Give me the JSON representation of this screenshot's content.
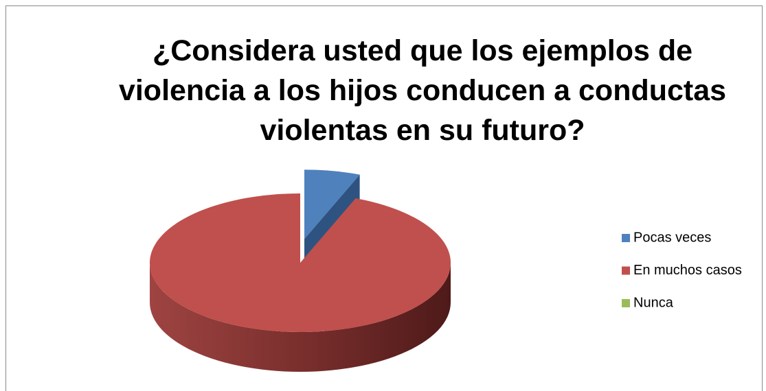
{
  "chart_data": {
    "type": "pie3d",
    "title": [
      "¿Considera usted que los ejemplos de",
      "violencia a los hijos conducen a conductas",
      "violentas en su futuro?"
    ],
    "categories": [
      "Pocas veces",
      "En muchos casos",
      "Nunca"
    ],
    "values": [
      6,
      94,
      0
    ],
    "colors": [
      "#4f81bd",
      "#c0504d",
      "#9bbb59"
    ],
    "legend": "right"
  }
}
